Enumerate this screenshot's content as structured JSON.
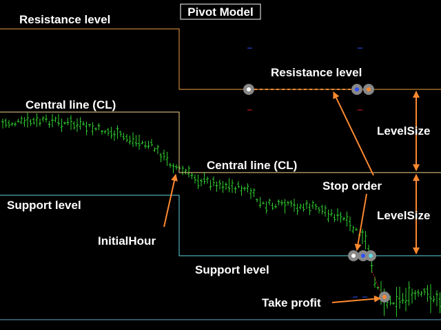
{
  "header": {
    "title": "Pivot Model"
  },
  "levels": {
    "resistance": {
      "left_label": "Resistance level",
      "right_label": "Resistance level"
    },
    "central": {
      "left_label": "Central line (CL)",
      "right_label": "Central line (CL)"
    },
    "support": {
      "left_label": "Support level",
      "right_label": "Support level"
    }
  },
  "annotations": {
    "initial_hour": "InitialHour",
    "stop_order": "Stop order",
    "take_profit": "Take profit",
    "level_size_upper": "LevelSize",
    "level_size_lower": "LevelSize"
  }
}
